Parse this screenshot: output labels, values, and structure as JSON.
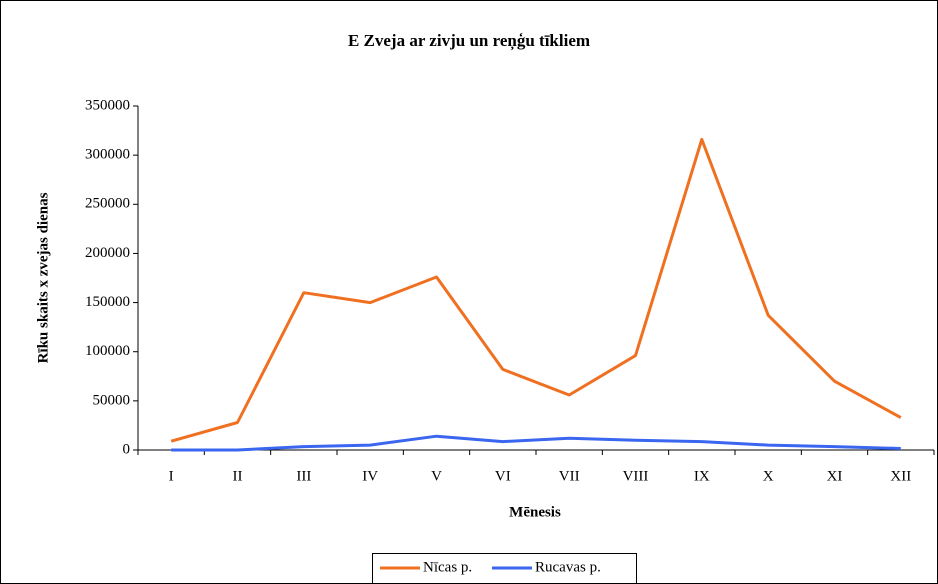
{
  "chart_data": {
    "type": "line",
    "title": "E  Zveja ar zivju un reņģu tīkliem",
    "x_label": "Mēnesis",
    "y_label": "Rīku skaits x zvejas dienas",
    "categories": [
      "I",
      "II",
      "III",
      "IV",
      "V",
      "VI",
      "VII",
      "VIII",
      "IX",
      "X",
      "XI",
      "XII"
    ],
    "series": [
      {
        "name": "Nīcas p.",
        "color": "#f07021",
        "values": [
          9000,
          28000,
          160000,
          150000,
          176000,
          82000,
          56000,
          96000,
          316000,
          137000,
          70000,
          33000
        ]
      },
      {
        "name": "Rucavas p.",
        "color": "#3a66f0",
        "values": [
          0,
          0,
          3500,
          5000,
          14000,
          8500,
          12000,
          10000,
          8500,
          5000,
          3500,
          1500
        ]
      }
    ],
    "ylim": [
      0,
      350000
    ],
    "yticks": [
      0,
      50000,
      100000,
      150000,
      200000,
      250000,
      300000,
      350000
    ],
    "legend": "bottom"
  }
}
